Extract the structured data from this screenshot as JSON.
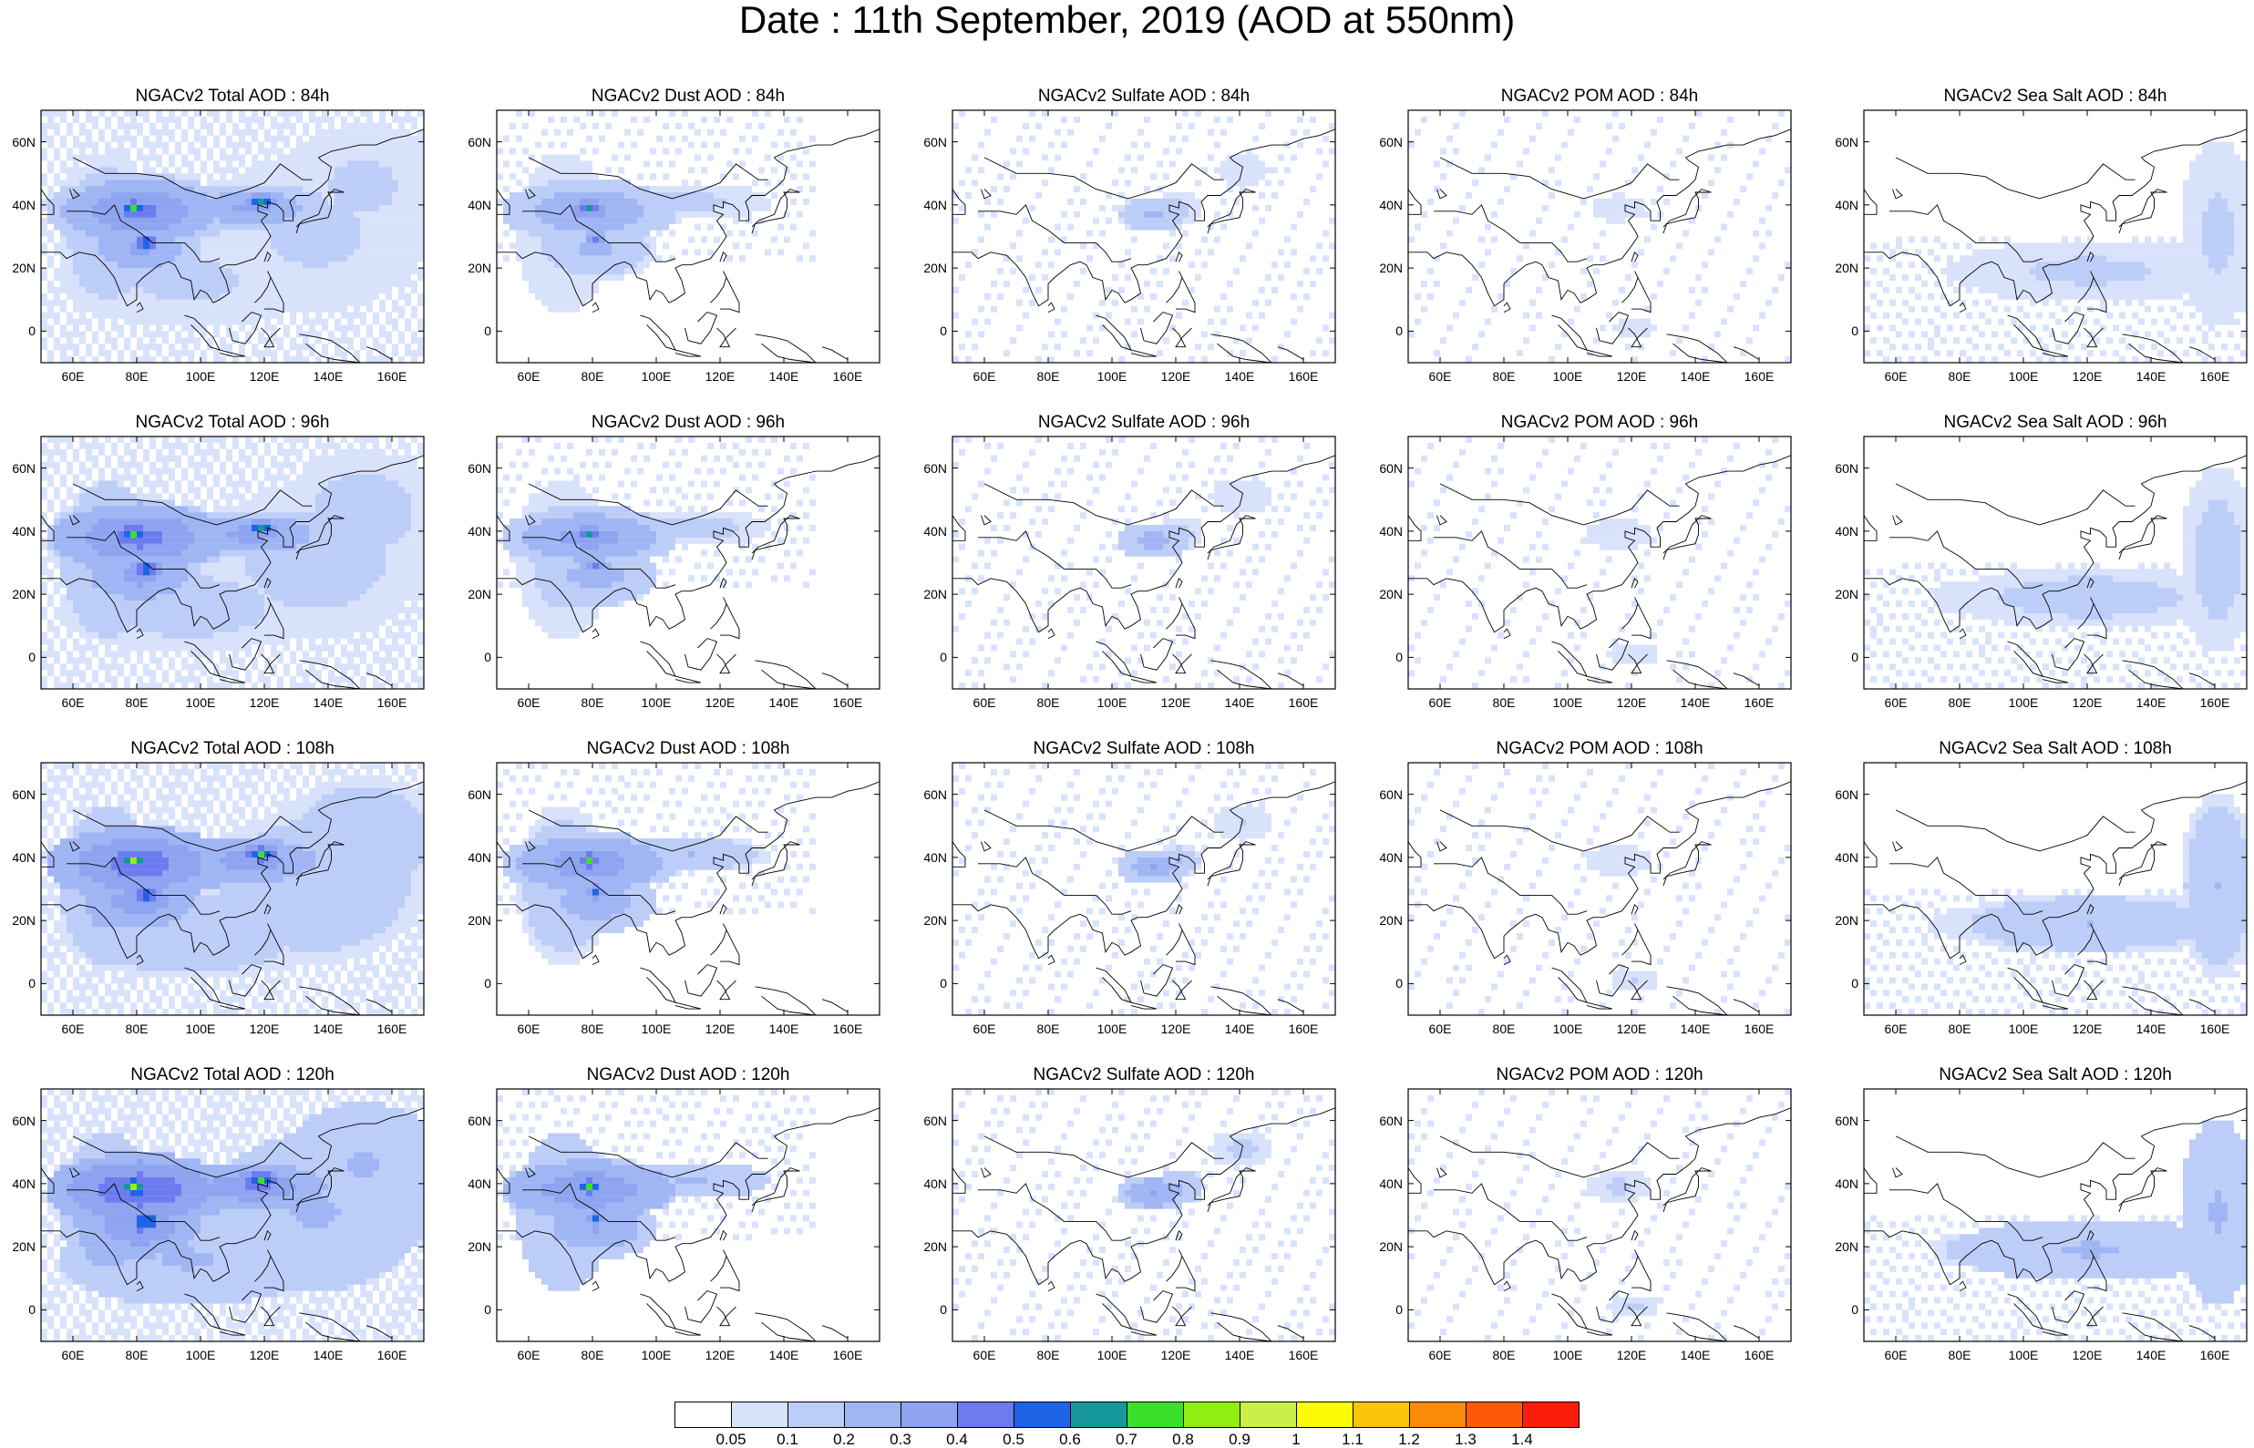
{
  "title": "Date : 11th September, 2019 (AOD at 550nm)",
  "panel_titles": [
    [
      "NGACv2 Total AOD : 84h",
      "NGACv2 Dust AOD : 84h",
      "NGACv2 Sulfate AOD : 84h",
      "NGACv2 POM AOD : 84h",
      "NGACv2 Sea Salt AOD : 84h"
    ],
    [
      "NGACv2 Total AOD : 96h",
      "NGACv2 Dust AOD : 96h",
      "NGACv2 Sulfate AOD : 96h",
      "NGACv2 POM AOD : 96h",
      "NGACv2 Sea Salt AOD : 96h"
    ],
    [
      "NGACv2 Total AOD : 108h",
      "NGACv2 Dust AOD : 108h",
      "NGACv2 Sulfate AOD : 108h",
      "NGACv2 POM AOD : 108h",
      "NGACv2 Sea Salt AOD : 108h"
    ],
    [
      "NGACv2 Total AOD : 120h",
      "NGACv2 Dust AOD : 120h",
      "NGACv2 Sulfate AOD : 120h",
      "NGACv2 POM AOD : 120h",
      "NGACv2 Sea Salt  AOD : 120h"
    ]
  ],
  "map": {
    "lat_ticks": [
      "60N",
      "40N",
      "20N",
      "0"
    ],
    "lon_ticks": [
      "60E",
      "80E",
      "100E",
      "120E",
      "140E",
      "160E"
    ],
    "lon_range": [
      50,
      170
    ],
    "lat_range": [
      -10,
      70
    ]
  },
  "colorbar": {
    "labels": [
      "0.05",
      "0.1",
      "0.2",
      "0.3",
      "0.4",
      "0.5",
      "0.6",
      "0.7",
      "0.8",
      "0.9",
      "1",
      "1.1",
      "1.2",
      "1.3",
      "1.4"
    ],
    "colors": [
      "#ffffff",
      "#d8e2fb",
      "#bccdf8",
      "#a0b5f4",
      "#8ea4f0",
      "#6c7cef",
      "#1f63e6",
      "#16989a",
      "#3be02c",
      "#93ee11",
      "#caef49",
      "#fcfc07",
      "#fcc30b",
      "#fb8b0b",
      "#fc5a06",
      "#fb1c0c"
    ]
  }
}
